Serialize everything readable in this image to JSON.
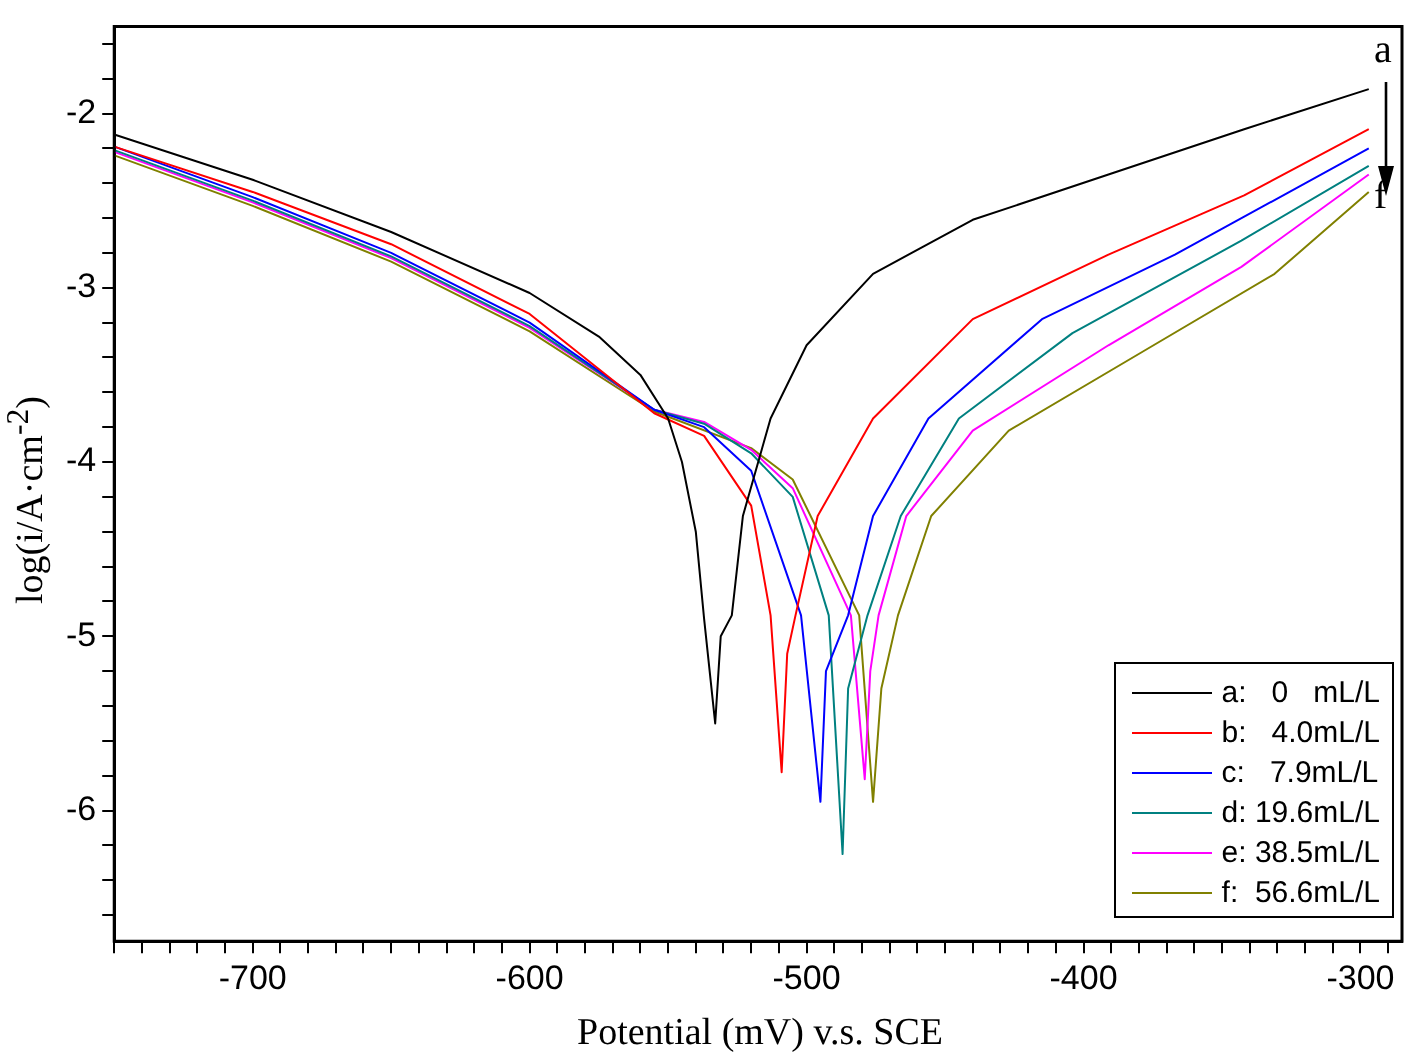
{
  "chart_data": {
    "type": "line",
    "xlabel": "Potential (mV) v.s. SCE",
    "ylabel": "log(i/A·cm$^{-2}$)",
    "xlim": [
      -750,
      -285
    ],
    "ylim": [
      -6.75,
      -1.5
    ],
    "xticks": [
      {
        "value": -750,
        "label": null
      },
      {
        "value": -740,
        "label": null
      },
      {
        "value": -730,
        "label": null
      },
      {
        "value": -720,
        "label": null
      },
      {
        "value": -710,
        "label": null
      },
      -700,
      {
        "value": -690,
        "label": null
      },
      {
        "value": -680,
        "label": null
      },
      {
        "value": -670,
        "label": null
      },
      {
        "value": -660,
        "label": null
      },
      {
        "value": -650,
        "label": null
      },
      {
        "value": -640,
        "label": null
      },
      {
        "value": -630,
        "label": null
      },
      {
        "value": -620,
        "label": null
      },
      {
        "value": -610,
        "label": null
      },
      -600,
      {
        "value": -590,
        "label": null
      },
      {
        "value": -580,
        "label": null
      },
      {
        "value": -570,
        "label": null
      },
      {
        "value": -560,
        "label": null
      },
      {
        "value": -550,
        "label": null
      },
      {
        "value": -540,
        "label": null
      },
      {
        "value": -530,
        "label": null
      },
      {
        "value": -520,
        "label": null
      },
      {
        "value": -510,
        "label": null
      },
      -500,
      {
        "value": -490,
        "label": null
      },
      {
        "value": -480,
        "label": null
      },
      {
        "value": -470,
        "label": null
      },
      {
        "value": -460,
        "label": null
      },
      {
        "value": -450,
        "label": null
      },
      {
        "value": -440,
        "label": null
      },
      {
        "value": -430,
        "label": null
      },
      {
        "value": -420,
        "label": null
      },
      {
        "value": -410,
        "label": null
      },
      -400,
      {
        "value": -390,
        "label": null
      },
      {
        "value": -380,
        "label": null
      },
      {
        "value": -370,
        "label": null
      },
      {
        "value": -360,
        "label": null
      },
      {
        "value": -350,
        "label": null
      },
      {
        "value": -340,
        "label": null
      },
      {
        "value": -330,
        "label": null
      },
      {
        "value": -320,
        "label": null
      },
      {
        "value": -310,
        "label": null
      },
      -300,
      {
        "value": -290,
        "label": null
      }
    ],
    "yticks": [
      {
        "value": -6.6,
        "label": null
      },
      {
        "value": -6.4,
        "label": null
      },
      {
        "value": -6.2,
        "label": null
      },
      -6,
      {
        "value": -5.8,
        "label": null
      },
      {
        "value": -5.6,
        "label": null
      },
      {
        "value": -5.4,
        "label": null
      },
      {
        "value": -5.2,
        "label": null
      },
      -5,
      {
        "value": -4.8,
        "label": null
      },
      {
        "value": -4.6,
        "label": null
      },
      {
        "value": -4.4,
        "label": null
      },
      {
        "value": -4.2,
        "label": null
      },
      -4,
      {
        "value": -3.8,
        "label": null
      },
      {
        "value": -3.6,
        "label": null
      },
      {
        "value": -3.4,
        "label": null
      },
      {
        "value": -3.2,
        "label": null
      },
      -3,
      {
        "value": -2.8,
        "label": null
      },
      {
        "value": -2.6,
        "label": null
      },
      {
        "value": -2.4,
        "label": null
      },
      {
        "value": -2.2,
        "label": null
      },
      -2,
      {
        "value": -1.8,
        "label": null
      },
      {
        "value": -1.6,
        "label": null
      }
    ],
    "grid": false,
    "legend": "bottom right",
    "marker": "none",
    "line_style": "solid",
    "annotations": [
      "a",
      "f"
    ],
    "series": [
      {
        "name": "a:   0   mL/L",
        "color": "#000000",
        "x": [
          -750,
          -700,
          -650,
          -600,
          -575,
          -560,
          -550,
          -545,
          -540,
          -537,
          -533,
          -531,
          -527,
          -523,
          -513,
          -500,
          -476,
          -440,
          -391,
          -342,
          -297
        ],
        "values": [
          -2.12,
          -2.38,
          -2.68,
          -3.03,
          -3.28,
          -3.5,
          -3.75,
          -4.0,
          -4.4,
          -4.9,
          -5.5,
          -5.0,
          -4.88,
          -4.31,
          -3.75,
          -3.33,
          -2.92,
          -2.61,
          -2.35,
          -2.09,
          -1.86
        ]
      },
      {
        "name": "b:   4.0mL/L",
        "color": "#ff0000",
        "x": [
          -750,
          -700,
          -650,
          -600,
          -555,
          -537,
          -520,
          -513,
          -509,
          -507,
          -504,
          -496,
          -476,
          -440,
          -391,
          -342,
          -297
        ],
        "values": [
          -2.19,
          -2.45,
          -2.75,
          -3.15,
          -3.72,
          -3.85,
          -4.25,
          -4.88,
          -5.78,
          -5.1,
          -4.88,
          -4.31,
          -3.75,
          -3.18,
          -2.81,
          -2.47,
          -2.09
        ]
      },
      {
        "name": "c:   7.9mL/L",
        "color": "#0000ff",
        "x": [
          -750,
          -700,
          -650,
          -600,
          -555,
          -537,
          -520,
          -502,
          -495,
          -493,
          -485,
          -476,
          -456,
          -415,
          -367,
          -297
        ],
        "values": [
          -2.19,
          -2.48,
          -2.8,
          -3.2,
          -3.7,
          -3.8,
          -4.05,
          -4.88,
          -5.95,
          -5.2,
          -4.88,
          -4.31,
          -3.75,
          -3.18,
          -2.81,
          -2.2
        ]
      },
      {
        "name": "d: 19.6mL/L",
        "color": "#008080",
        "x": [
          -750,
          -700,
          -650,
          -600,
          -555,
          -537,
          -520,
          -505,
          -492,
          -487,
          -485,
          -478,
          -466,
          -445,
          -404,
          -343,
          -297
        ],
        "values": [
          -2.21,
          -2.5,
          -2.82,
          -3.22,
          -3.7,
          -3.78,
          -3.95,
          -4.2,
          -4.88,
          -6.25,
          -5.3,
          -4.88,
          -4.31,
          -3.75,
          -3.26,
          -2.73,
          -2.3
        ]
      },
      {
        "name": "e: 38.5mL/L",
        "color": "#ff00ff",
        "x": [
          -750,
          -700,
          -650,
          -600,
          -555,
          -537,
          -520,
          -505,
          -484,
          -479,
          -477,
          -474,
          -464,
          -440,
          -391,
          -343,
          -297
        ],
        "values": [
          -2.22,
          -2.51,
          -2.83,
          -3.23,
          -3.7,
          -3.77,
          -3.93,
          -4.15,
          -4.88,
          -5.82,
          -5.2,
          -4.88,
          -4.31,
          -3.82,
          -3.33,
          -2.88,
          -2.35
        ]
      },
      {
        "name": "f:  56.6mL/L",
        "color": "#808000",
        "x": [
          -750,
          -700,
          -650,
          -600,
          -555,
          -520,
          -505,
          -481,
          -476,
          -473,
          -467,
          -455,
          -427,
          -379,
          -331,
          -297
        ],
        "values": [
          -2.24,
          -2.53,
          -2.85,
          -3.25,
          -3.71,
          -3.92,
          -4.1,
          -4.88,
          -5.95,
          -5.3,
          -4.88,
          -4.31,
          -3.82,
          -3.37,
          -2.92,
          -2.45
        ]
      }
    ]
  }
}
